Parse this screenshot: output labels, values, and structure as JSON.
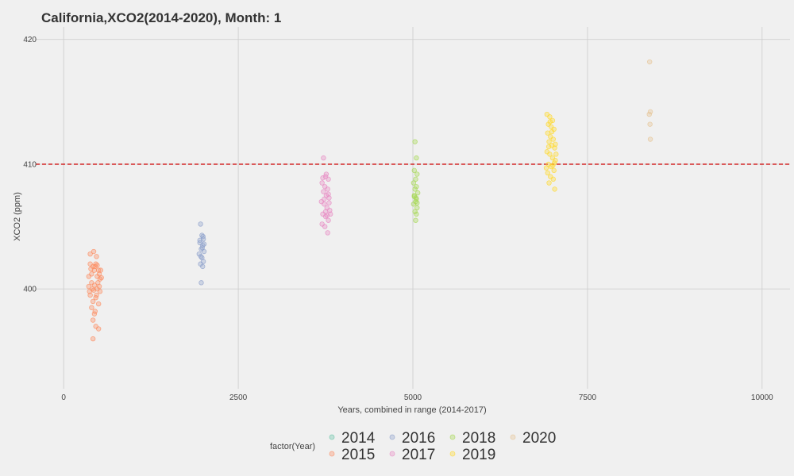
{
  "chart_data": {
    "type": "scatter",
    "title": "California,XCO2(2014-2020), Month: 1",
    "xlabel": "Years, combined in range (2014-2017)",
    "ylabel": "XCO2 (ppm)",
    "xlim": [
      -400,
      10400
    ],
    "ylim": [
      392,
      421
    ],
    "xticks": [
      0,
      2500,
      5000,
      7500,
      10000
    ],
    "xtick_labels": [
      "0",
      "2500",
      "5000",
      "7500",
      "10000"
    ],
    "yticks": [
      400,
      410,
      420
    ],
    "ytick_labels": [
      "400",
      "410",
      "420"
    ],
    "grid": true,
    "reference_line": {
      "y": 410,
      "color": "#cc0000",
      "style": "dashed"
    },
    "legend": {
      "title": "factor(Year)",
      "position": "bottom",
      "entries": [
        {
          "label": "2014",
          "color": "#66c2a5"
        },
        {
          "label": "2015",
          "color": "#fc8d62"
        },
        {
          "label": "2016",
          "color": "#8da0cb"
        },
        {
          "label": "2017",
          "color": "#e78ac3"
        },
        {
          "label": "2018",
          "color": "#a6d854"
        },
        {
          "label": "2019",
          "color": "#ffd92f"
        },
        {
          "label": "2020",
          "color": "#e5c494"
        }
      ]
    },
    "series": [
      {
        "name": "2015",
        "color": "#fc8d62",
        "points": [
          [
            380,
            402
          ],
          [
            420,
            401.8
          ],
          [
            460,
            402
          ],
          [
            500,
            401.5
          ],
          [
            400,
            401.2
          ],
          [
            440,
            401.5
          ],
          [
            480,
            401
          ],
          [
            520,
            400.8
          ],
          [
            360,
            401
          ],
          [
            400,
            400.5
          ],
          [
            440,
            400.3
          ],
          [
            480,
            400
          ],
          [
            520,
            399.8
          ],
          [
            380,
            399.5
          ],
          [
            420,
            399
          ],
          [
            460,
            399.3
          ],
          [
            500,
            398.8
          ],
          [
            400,
            398.5
          ],
          [
            440,
            398
          ],
          [
            420,
            397.5
          ],
          [
            460,
            397
          ],
          [
            500,
            396.8
          ],
          [
            420,
            396
          ],
          [
            380,
            402.8
          ],
          [
            430,
            403
          ],
          [
            470,
            402.6
          ],
          [
            510,
            401.2
          ],
          [
            540,
            400.9
          ],
          [
            360,
            400.2
          ],
          [
            450,
            401.8
          ],
          [
            490,
            400.5
          ],
          [
            530,
            401.5
          ],
          [
            410,
            400
          ],
          [
            370,
            399.8
          ],
          [
            470,
            399.5
          ],
          [
            430,
            399.9
          ],
          [
            390,
            401.6
          ],
          [
            510,
            400.2
          ],
          [
            450,
            398.2
          ],
          [
            480,
            401.9
          ]
        ]
      },
      {
        "name": "2016",
        "color": "#8da0cb",
        "points": [
          [
            1960,
            405.2
          ],
          [
            1980,
            404.3
          ],
          [
            2000,
            404
          ],
          [
            1950,
            403.7
          ],
          [
            1990,
            403.5
          ],
          [
            1970,
            403.2
          ],
          [
            2010,
            403
          ],
          [
            1940,
            402.8
          ],
          [
            1980,
            402.5
          ],
          [
            2000,
            402.2
          ],
          [
            1960,
            402
          ],
          [
            1990,
            401.8
          ],
          [
            1970,
            400.5
          ],
          [
            1950,
            403.9
          ],
          [
            2010,
            403.6
          ],
          [
            1985,
            403.3
          ],
          [
            1965,
            402.6
          ],
          [
            1995,
            404.2
          ]
        ]
      },
      {
        "name": "2017",
        "color": "#e78ac3",
        "points": [
          [
            3720,
            410.5
          ],
          [
            3750,
            409
          ],
          [
            3790,
            408.8
          ],
          [
            3700,
            408.5
          ],
          [
            3740,
            408.2
          ],
          [
            3780,
            408
          ],
          [
            3720,
            407.8
          ],
          [
            3760,
            407.5
          ],
          [
            3800,
            407.3
          ],
          [
            3690,
            407
          ],
          [
            3730,
            406.8
          ],
          [
            3770,
            406.5
          ],
          [
            3810,
            406.3
          ],
          [
            3710,
            406
          ],
          [
            3750,
            405.8
          ],
          [
            3790,
            405.5
          ],
          [
            3700,
            405.2
          ],
          [
            3740,
            405
          ],
          [
            3780,
            404.5
          ],
          [
            3820,
            406
          ],
          [
            3760,
            409.2
          ],
          [
            3730,
            407.2
          ],
          [
            3800,
            406.9
          ],
          [
            3710,
            408.9
          ],
          [
            3770,
            405.9
          ],
          [
            3790,
            407.6
          ],
          [
            3750,
            406.2
          ]
        ]
      },
      {
        "name": "2018",
        "color": "#a6d854",
        "points": [
          [
            5030,
            411.8
          ],
          [
            5050,
            410.5
          ],
          [
            5020,
            409.5
          ],
          [
            5060,
            409.2
          ],
          [
            5040,
            408.8
          ],
          [
            5010,
            408.5
          ],
          [
            5050,
            408.2
          ],
          [
            5030,
            408
          ],
          [
            5070,
            407.7
          ],
          [
            5020,
            407.5
          ],
          [
            5050,
            407.2
          ],
          [
            5040,
            407
          ],
          [
            5010,
            406.8
          ],
          [
            5060,
            406.5
          ],
          [
            5030,
            406.2
          ],
          [
            5050,
            406
          ],
          [
            5040,
            405.5
          ],
          [
            5020,
            407.4
          ],
          [
            5060,
            406.9
          ],
          [
            5045,
            407.3
          ]
        ]
      },
      {
        "name": "2019",
        "color": "#ffd92f",
        "points": [
          [
            6920,
            414
          ],
          [
            6960,
            413.8
          ],
          [
            7000,
            413.5
          ],
          [
            6940,
            413.2
          ],
          [
            6980,
            413
          ],
          [
            7020,
            412.8
          ],
          [
            6930,
            412.5
          ],
          [
            6970,
            412.2
          ],
          [
            7010,
            412
          ],
          [
            6950,
            411.8
          ],
          [
            6990,
            411.5
          ],
          [
            7030,
            411.3
          ],
          [
            6920,
            411
          ],
          [
            6960,
            410.8
          ],
          [
            7000,
            410.5
          ],
          [
            7040,
            410.3
          ],
          [
            6940,
            410
          ],
          [
            6980,
            409.8
          ],
          [
            7020,
            409.5
          ],
          [
            6930,
            409.3
          ],
          [
            6970,
            409
          ],
          [
            7010,
            408.8
          ],
          [
            6950,
            408.5
          ],
          [
            7030,
            408
          ],
          [
            7050,
            410.8
          ],
          [
            6990,
            412.6
          ],
          [
            6910,
            409.7
          ],
          [
            7040,
            411.6
          ],
          [
            6965,
            413.4
          ],
          [
            7005,
            409.9
          ],
          [
            6945,
            411.4
          ],
          [
            7025,
            410.1
          ]
        ]
      },
      {
        "name": "2020",
        "color": "#e5c494",
        "points": [
          [
            8390,
            418.2
          ],
          [
            8400,
            414.2
          ],
          [
            8385,
            414
          ],
          [
            8395,
            413.2
          ],
          [
            8400,
            412
          ]
        ]
      }
    ]
  }
}
